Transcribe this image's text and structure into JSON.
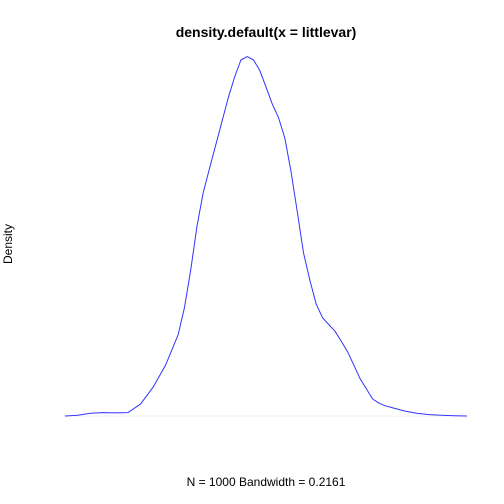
{
  "colors": {
    "background": "#ffffff",
    "line": "#3333ff",
    "baseline": "#f2f2f2",
    "text": "#000000"
  },
  "chart_data": {
    "type": "line",
    "title": "density.default(x = littlevar)",
    "xlabel": "N = 1000   Bandwidth = 0.2161",
    "ylabel": "Density",
    "axes_visible": false,
    "grid": false,
    "legend": "none",
    "xlim": [
      -3.3,
      3.3
    ],
    "ylim": [
      0,
      1.05
    ],
    "series": [
      {
        "x": [
          -3.2,
          -3.0,
          -2.8,
          -2.6,
          -2.4,
          -2.2,
          -2.0,
          -1.8,
          -1.6,
          -1.4,
          -1.3,
          -1.2,
          -1.1,
          -1.0,
          -0.9,
          -0.8,
          -0.7,
          -0.6,
          -0.5,
          -0.4,
          -0.3,
          -0.2,
          -0.1,
          0.0,
          0.1,
          0.2,
          0.3,
          0.4,
          0.5,
          0.6,
          0.7,
          0.8,
          0.9,
          1.0,
          1.1,
          1.2,
          1.3,
          1.4,
          1.5,
          1.6,
          1.7,
          1.8,
          1.9,
          2.0,
          2.2,
          2.4,
          2.6,
          2.8,
          3.0,
          3.2
        ],
        "y": [
          0.0,
          0.002,
          0.008,
          0.01,
          0.009,
          0.01,
          0.035,
          0.085,
          0.15,
          0.24,
          0.32,
          0.43,
          0.56,
          0.66,
          0.73,
          0.8,
          0.87,
          0.94,
          1.0,
          1.05,
          1.06,
          1.05,
          1.02,
          0.97,
          0.92,
          0.88,
          0.82,
          0.72,
          0.6,
          0.48,
          0.4,
          0.33,
          0.29,
          0.27,
          0.25,
          0.22,
          0.19,
          0.15,
          0.11,
          0.08,
          0.05,
          0.038,
          0.03,
          0.025,
          0.015,
          0.008,
          0.004,
          0.002,
          0.001,
          0.0
        ]
      }
    ]
  }
}
